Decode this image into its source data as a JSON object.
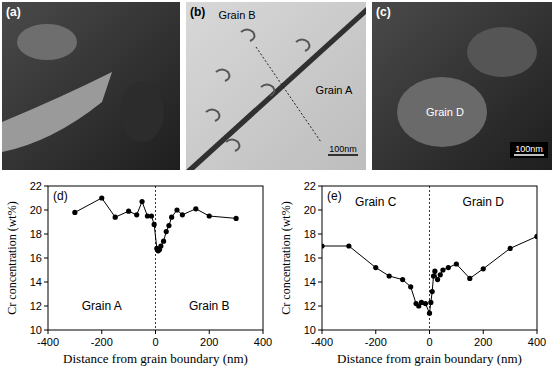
{
  "images": [
    {
      "letter": "(a)"
    },
    {
      "letter": "(b)",
      "labels": [
        "Grain B",
        "Grain A"
      ],
      "scale_bar": "100nm"
    },
    {
      "letter": "(c)",
      "labels": [
        "Grain D"
      ],
      "scale_bar": "100nm"
    }
  ],
  "chart_data": [
    {
      "type": "line",
      "title": "(d)",
      "marker": "circle",
      "color": "#000000",
      "x_label": "Distance from grain boundary (nm)",
      "y_label": "Cr concentration (wt%)",
      "annotations": [
        "Grain A",
        "Grain B"
      ],
      "x": [
        -300,
        -200,
        -150,
        -100,
        -70,
        -50,
        -30,
        -15,
        -5,
        5,
        10,
        15,
        20,
        30,
        40,
        50,
        60,
        80,
        100,
        150,
        200,
        300
      ],
      "values": [
        19.8,
        21.0,
        19.4,
        19.9,
        19.6,
        20.7,
        19.5,
        19.5,
        18.8,
        16.8,
        16.6,
        16.7,
        17.0,
        17.4,
        18.2,
        18.7,
        19.4,
        20.0,
        19.6,
        20.1,
        19.5,
        19.3
      ],
      "xlim": [
        -400,
        400
      ],
      "xticks": [
        -400,
        -200,
        0,
        200,
        400
      ],
      "ylim": [
        10,
        22
      ],
      "yticks": [
        10,
        12,
        14,
        16,
        18,
        20,
        22
      ]
    },
    {
      "type": "line",
      "title": "(e)",
      "marker": "circle",
      "color": "#000000",
      "x_label": "Distance from grain boundary (nm)",
      "y_label": "Cr concentration (wt%)",
      "annotations": [
        "Grain C",
        "Grain D"
      ],
      "x": [
        -400,
        -300,
        -200,
        -150,
        -100,
        -70,
        -50,
        -40,
        -30,
        -15,
        0,
        5,
        10,
        15,
        20,
        30,
        40,
        50,
        70,
        100,
        150,
        200,
        300,
        400
      ],
      "values": [
        17.0,
        17.0,
        15.2,
        14.5,
        14.2,
        13.6,
        12.2,
        12.0,
        12.3,
        12.2,
        11.4,
        12.3,
        13.2,
        14.5,
        14.9,
        14.2,
        14.6,
        15.0,
        15.2,
        15.5,
        14.3,
        15.1,
        16.8,
        17.8
      ],
      "xlim": [
        -400,
        400
      ],
      "xticks": [
        -400,
        -200,
        0,
        200,
        400
      ],
      "ylim": [
        10,
        22
      ],
      "yticks": [
        10,
        12,
        14,
        16,
        18,
        20,
        22
      ]
    }
  ]
}
